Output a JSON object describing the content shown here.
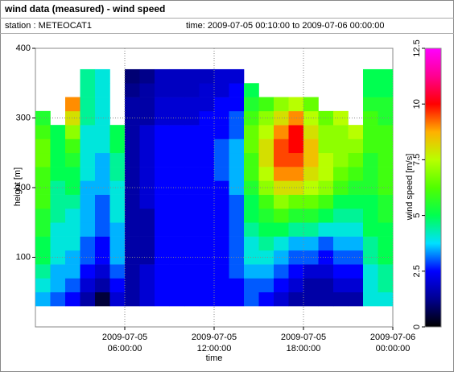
{
  "chart_data": {
    "type": "heatmap",
    "title": "wind data (measured) - wind speed",
    "station": "station : METEOCAT1",
    "time_range": "time: 2009-07-05 00:10:00 to 2009-07-06 00:00:00",
    "xlabel": "time",
    "ylabel": "height [m]",
    "colorbar_label": "wind speed [m/s]",
    "xlim": [
      "2009-07-05 00:00:00",
      "2009-07-06 00:00:00"
    ],
    "xticks": [
      "2009-07-05 06:00:00",
      "2009-07-05 12:00:00",
      "2009-07-05 18:00:00",
      "2009-07-06 00:00:00"
    ],
    "ylim": [
      0,
      400
    ],
    "yticks": [
      100,
      200,
      300,
      400
    ],
    "zlim": [
      0,
      12.5
    ],
    "zticks": [
      0,
      2.5,
      5,
      7.5,
      10,
      12.5
    ],
    "colors": [
      "#000000",
      "#000090",
      "#0000ff",
      "#00e0ff",
      "#00ff50",
      "#50ff00",
      "#b8ff00",
      "#ffb000",
      "#ff0000",
      "#ff0090",
      "#ff00ff"
    ],
    "grid": true,
    "x": [
      "2009-07-05 00:30:00",
      "2009-07-05 01:30:00",
      "2009-07-05 02:30:00",
      "2009-07-05 03:30:00",
      "2009-07-05 04:30:00",
      "2009-07-05 05:30:00",
      "2009-07-05 06:30:00",
      "2009-07-05 07:30:00",
      "2009-07-05 08:30:00",
      "2009-07-05 09:30:00",
      "2009-07-05 10:30:00",
      "2009-07-05 11:30:00",
      "2009-07-05 12:30:00",
      "2009-07-05 13:30:00",
      "2009-07-05 14:30:00",
      "2009-07-05 15:30:00",
      "2009-07-05 16:30:00",
      "2009-07-05 17:30:00",
      "2009-07-05 18:30:00",
      "2009-07-05 19:30:00",
      "2009-07-05 20:30:00",
      "2009-07-05 21:30:00",
      "2009-07-05 22:30:00",
      "2009-07-05 23:30:00"
    ],
    "y": [
      40,
      60,
      80,
      100,
      120,
      140,
      160,
      180,
      200,
      220,
      240,
      260,
      280,
      300,
      320,
      340,
      360
    ],
    "values": [
      [
        3.5,
        4,
        4.5,
        5,
        5,
        5.5,
        5.5,
        6,
        6,
        6,
        6.5,
        6.5,
        6,
        5.5,
        null,
        null,
        null
      ],
      [
        3,
        3.5,
        3.5,
        4,
        4,
        4,
        4.5,
        4.5,
        4.5,
        5,
        5,
        5,
        5,
        null,
        null,
        null,
        null
      ],
      [
        2.5,
        3,
        3.5,
        3.5,
        4,
        4,
        4,
        4.5,
        5,
        5,
        5.5,
        6,
        7,
        8,
        9,
        null,
        null
      ],
      [
        1.5,
        2,
        2.5,
        3,
        3,
        3.5,
        3.5,
        3.5,
        3.5,
        4,
        4,
        4,
        4,
        4.5,
        4.5,
        4.5,
        4.5
      ],
      [
        0.5,
        1.5,
        2,
        2.5,
        2.5,
        3,
        3,
        3,
        3.5,
        3.5,
        3.5,
        4,
        4,
        4,
        4,
        4,
        4
      ],
      [
        2,
        2.5,
        3,
        3.5,
        3.5,
        3.5,
        4,
        4,
        4,
        4.5,
        4.5,
        5,
        5,
        null,
        null,
        null,
        null
      ],
      [
        1.5,
        1.5,
        1.5,
        1.5,
        1.5,
        1.5,
        1.5,
        1.5,
        1.5,
        1.5,
        1.5,
        1.5,
        1.5,
        1.5,
        1.5,
        1.2,
        1
      ],
      [
        2,
        2,
        2,
        1.5,
        1.5,
        1.5,
        1.5,
        2,
        2,
        2,
        2,
        2,
        2,
        1.5,
        1.5,
        1.5,
        1.2
      ],
      [
        2.5,
        2.5,
        2.5,
        2.5,
        2.5,
        2.5,
        2.5,
        2.5,
        2.5,
        2.5,
        2.5,
        2.5,
        2.5,
        2,
        2,
        1.8,
        1.8
      ],
      [
        2.5,
        2.5,
        2.5,
        2.5,
        2.5,
        2.5,
        2.5,
        2.5,
        2.5,
        2.5,
        2.5,
        2.5,
        2.5,
        2,
        2,
        1.8,
        1.8
      ],
      [
        2.5,
        2.5,
        2.5,
        2.5,
        2.5,
        2.5,
        2.5,
        2.5,
        2.5,
        2.5,
        2.5,
        2.5,
        2.5,
        2,
        2,
        1.8,
        1.8
      ],
      [
        2.5,
        2.5,
        2.5,
        2.5,
        2.5,
        2.5,
        2.5,
        2.5,
        2.5,
        2.5,
        2.5,
        2.5,
        2.5,
        2.5,
        2,
        2,
        1.8
      ],
      [
        2.5,
        2.5,
        2.5,
        2.5,
        2.5,
        2.5,
        2.5,
        2.5,
        2.5,
        3,
        3,
        3,
        2.5,
        2.5,
        2.5,
        2,
        2
      ],
      [
        2.5,
        2.5,
        3,
        3,
        3,
        3,
        3,
        3,
        3.5,
        3.5,
        3.5,
        3.5,
        3,
        3,
        2.5,
        2.5,
        2
      ],
      [
        3,
        3,
        3.5,
        4,
        4,
        4.5,
        5,
        5,
        5.5,
        6,
        6,
        6.5,
        6.5,
        6,
        5.5,
        5,
        null
      ],
      [
        2.5,
        3,
        3.5,
        4,
        4.5,
        5,
        5.5,
        6,
        7,
        7.5,
        8,
        8,
        7.5,
        7,
        6,
        null,
        null
      ],
      [
        2,
        2.5,
        3,
        3.5,
        4,
        5,
        6,
        7,
        8,
        9,
        9.5,
        9.5,
        9,
        8,
        7,
        null,
        null
      ],
      [
        1.5,
        2,
        2.5,
        3,
        3.5,
        4.5,
        5.5,
        6.5,
        8,
        9,
        9.5,
        10,
        10,
        9,
        7.5,
        null,
        null
      ],
      [
        1.5,
        1.5,
        2,
        3,
        3.5,
        4.5,
        5.5,
        6.5,
        7.5,
        8,
        8.5,
        8.5,
        8,
        7.5,
        6.5,
        null,
        null
      ],
      [
        1.5,
        1.5,
        2,
        2.5,
        3,
        4,
        5,
        6,
        7,
        7.5,
        7.5,
        7,
        7,
        6.5,
        null,
        null,
        null
      ],
      [
        1.5,
        2,
        2.5,
        3,
        3.5,
        4,
        4.5,
        5,
        6,
        6.5,
        7,
        7,
        7,
        7.5,
        null,
        null,
        null
      ],
      [
        1.5,
        2,
        2.5,
        3,
        3.5,
        4,
        4.5,
        5,
        5.5,
        6,
        6.5,
        7,
        7.5,
        null,
        null,
        null,
        null
      ],
      [
        4,
        4,
        4,
        4.5,
        4.5,
        5,
        5,
        5,
        5.5,
        5.5,
        5.5,
        6,
        6,
        6,
        5.5,
        5,
        5
      ],
      [
        4,
        4.5,
        4.5,
        5,
        5,
        5,
        5.5,
        5.5,
        6,
        6,
        6,
        6,
        6,
        5.5,
        5.5,
        5,
        5
      ]
    ]
  }
}
